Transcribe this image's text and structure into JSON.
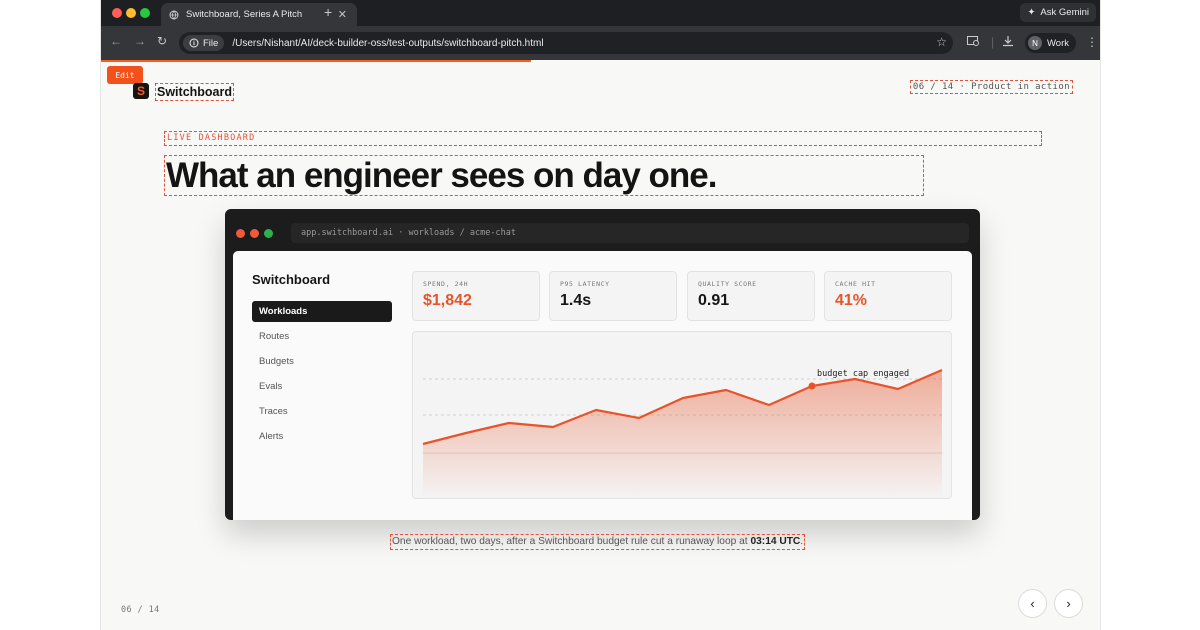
{
  "browser": {
    "tab_title": "Switchboard, Series A Pitch",
    "tab_close": "✕",
    "new_tab": "+",
    "ask_gemini": "Ask Gemini",
    "file_chip": "File",
    "url": "/Users/Nishant/AI/deck-builder-oss/test-outputs/switchboard-pitch.html",
    "profile_initial": "N",
    "profile_name": "Work",
    "load_progress": 0.43
  },
  "slide": {
    "edit_label": "Edit",
    "brand_mark": "S",
    "brand_name": "Switchboard",
    "page_meta": "06 / 14 · Product in action",
    "kicker": "LIVE DASHBOARD",
    "headline": "What an engineer sees on day one.",
    "caption_main": "One workload, two days, after a Switchboard budget rule cut a runaway loop at ",
    "caption_time": "03:14 UTC",
    "caption_end": ".",
    "counter": "06 / 14",
    "prev_glyph": "‹",
    "next_glyph": "›"
  },
  "dashboard": {
    "address": "app.switchboard.ai · workloads / acme-chat",
    "app_title": "Switchboard",
    "nav": [
      "Workloads",
      "Routes",
      "Budgets",
      "Evals",
      "Traces",
      "Alerts"
    ],
    "active_nav": "Workloads",
    "kpis": [
      {
        "label": "SPEND, 24H",
        "value": "$1,842",
        "accent": true
      },
      {
        "label": "P95 LATENCY",
        "value": "1.4s",
        "accent": false
      },
      {
        "label": "QUALITY SCORE",
        "value": "0.91",
        "accent": false
      },
      {
        "label": "CACHE HIT",
        "value": "41%",
        "accent": true
      }
    ],
    "annotation": "budget cap engaged"
  },
  "colors": {
    "accent": "#e8542a",
    "brand_orange": "#ff5a1f",
    "dashed_outline": "#e0533a",
    "dark": "#141414"
  }
}
